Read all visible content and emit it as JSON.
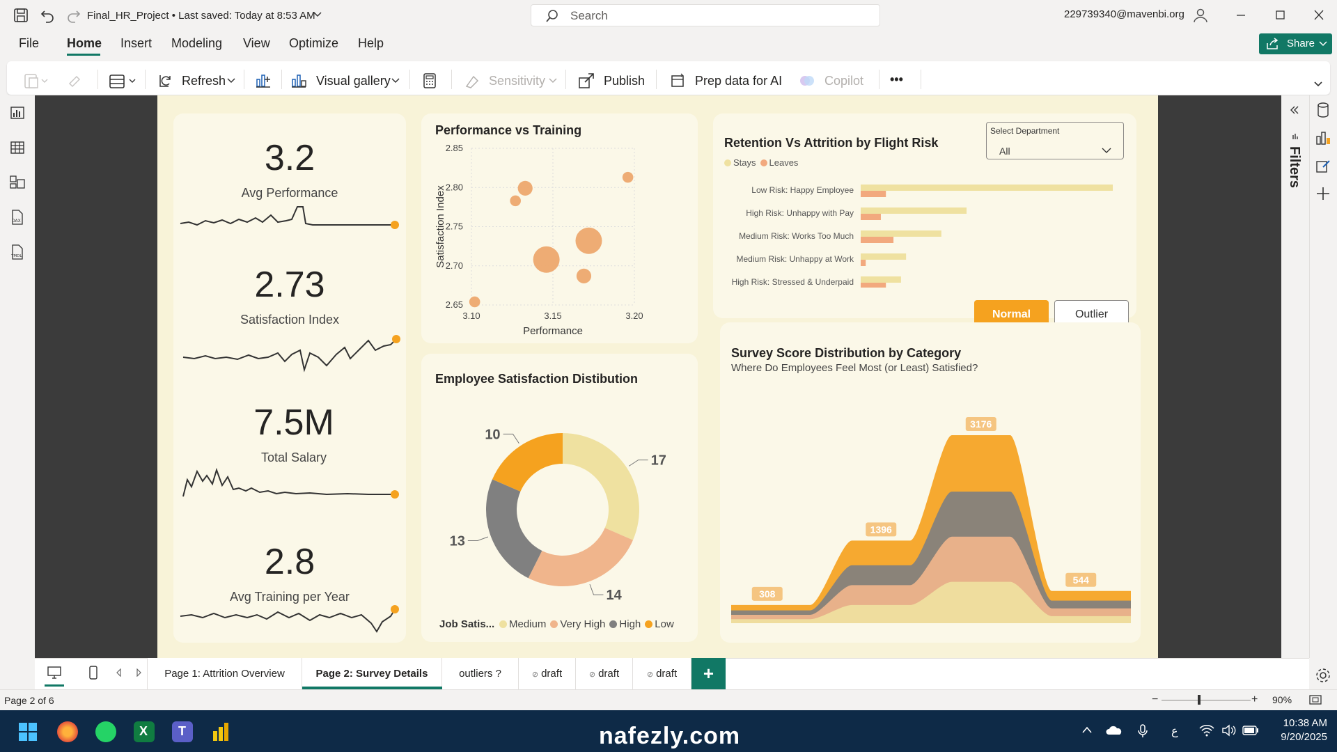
{
  "titlebar": {
    "doc_title": "Final_HR_Project  •  Last saved: Today at 8:53 AM",
    "search_placeholder": "Search",
    "user_email": "229739340@mavenbi.org"
  },
  "menu": {
    "items": [
      "File",
      "Home",
      "Insert",
      "Modeling",
      "View",
      "Optimize",
      "Help"
    ],
    "share": "Share"
  },
  "ribbon": {
    "refresh": "Refresh",
    "visual_gallery": "Visual gallery",
    "sensitivity": "Sensitivity",
    "publish": "Publish",
    "prep_data": "Prep data for AI",
    "copilot": "Copilot",
    "more": "•••"
  },
  "kpis": [
    {
      "value": "3.2",
      "label": "Avg Performance"
    },
    {
      "value": "2.73",
      "label": "Satisfaction Index"
    },
    {
      "value": "7.5M",
      "label": "Total Salary"
    },
    {
      "value": "2.8",
      "label": "Avg Training per Year"
    }
  ],
  "accent": "#f5a21f",
  "palette": {
    "stays": "#efe1a0",
    "leaves": "#f2a97e",
    "medium": "#efe1a0",
    "very_high": "#f0b58c",
    "high": "#808080",
    "low": "#f5a21f"
  },
  "scatter_card": {
    "title": "Performance vs Training"
  },
  "donut_card": {
    "title": "Employee Satisfaction Distibution",
    "legend_title": "Job Satis..."
  },
  "retention_card": {
    "title": "Retention Vs Attrition by Flight Risk"
  },
  "slicer": {
    "label": "Select Department",
    "value": "All"
  },
  "toggle": {
    "normal": "Normal",
    "outlier": "Outlier"
  },
  "survey_card": {
    "title": "Survey Score Distribution by Category",
    "subtitle": "Where Do Employees Feel Most (or Least) Satisfied?"
  },
  "chart_data": [
    {
      "type": "scatter",
      "title": "Performance vs Training",
      "xlabel": "Performance",
      "ylabel": "Satisfaction Index",
      "xlim": [
        3.1,
        3.2
      ],
      "ylim": [
        2.65,
        2.85
      ],
      "xticks": [
        "3.10",
        "3.15",
        "3.20"
      ],
      "yticks": [
        "2.85",
        "2.80",
        "2.75",
        "2.70",
        "2.65"
      ],
      "points": [
        {
          "x": 3.102,
          "y": 2.654,
          "size": 1
        },
        {
          "x": 3.127,
          "y": 2.783,
          "size": 1
        },
        {
          "x": 3.133,
          "y": 2.799,
          "size": 2
        },
        {
          "x": 3.146,
          "y": 2.708,
          "size": 5
        },
        {
          "x": 3.169,
          "y": 2.687,
          "size": 2
        },
        {
          "x": 3.172,
          "y": 2.732,
          "size": 5
        },
        {
          "x": 3.196,
          "y": 2.813,
          "size": 1
        }
      ]
    },
    {
      "type": "pie",
      "title": "Employee Satisfaction Distibution",
      "legend": [
        "Medium",
        "Very High",
        "High",
        "Low"
      ],
      "slices": [
        {
          "name": "Medium",
          "value": 17
        },
        {
          "name": "Very High",
          "value": 14
        },
        {
          "name": "High",
          "value": 13
        },
        {
          "name": "Low",
          "value": 10
        }
      ]
    },
    {
      "type": "bar",
      "title": "Retention Vs Attrition by Flight Risk",
      "legend": [
        "Stays",
        "Leaves"
      ],
      "categories": [
        "Low Risk: Happy Employee",
        "High Risk: Unhappy with Pay",
        "Medium Risk: Works Too Much",
        "Medium Risk: Unhappy at Work",
        "High Risk: Stressed & Underpaid"
      ],
      "series": [
        {
          "name": "Stays",
          "values": [
            100,
            42,
            32,
            18,
            16
          ]
        },
        {
          "name": "Leaves",
          "values": [
            10,
            8,
            13,
            2,
            10
          ]
        }
      ]
    },
    {
      "type": "area",
      "title": "Survey Score Distribution by Category",
      "subtitle": "Where Do Employees Feel Most (or Least) Satisfied?",
      "categories": [
        "",
        "",
        "",
        ""
      ],
      "totals": [
        308,
        1396,
        3176,
        544
      ]
    }
  ],
  "pages": {
    "tabs": [
      "Page 1: Attrition Overview",
      "Page 2: Survey Details",
      "outliers ?",
      "draft",
      "draft",
      "draft"
    ],
    "add": "+",
    "count": "Page 2 of 6",
    "zoom": "90%"
  },
  "taskbar": {
    "time": "10:38 AM",
    "date": "9/20/2025",
    "lang": "ع",
    "watermark": "nafezly.com"
  }
}
